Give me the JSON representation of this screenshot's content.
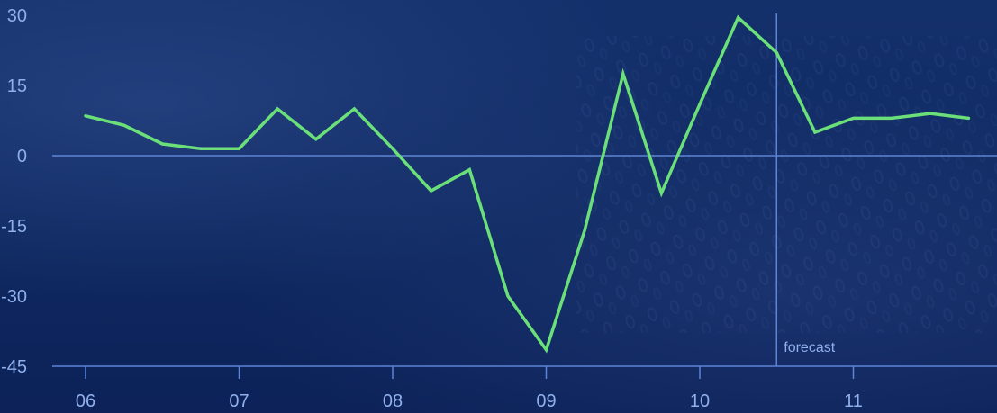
{
  "colors": {
    "line": "#6be079",
    "axis": "#5d84d6",
    "text": "#8fb0ec",
    "background": "#0f2a64"
  },
  "chart_data": {
    "type": "line",
    "title": "",
    "xlabel": "",
    "ylabel": "",
    "ylim": [
      -45,
      30
    ],
    "yticks": [
      30,
      15,
      0,
      -15,
      -30,
      -45
    ],
    "ytick_labels": [
      "30",
      "15",
      "0",
      "-15",
      "-30",
      "-45"
    ],
    "xlim": [
      2006,
      2011.88
    ],
    "xticks": [
      2006,
      2007,
      2008,
      2009,
      2010,
      2011
    ],
    "xtick_labels": [
      "06",
      "07",
      "08",
      "09",
      "10",
      "11"
    ],
    "grid": false,
    "legend": "none",
    "annotations": [
      {
        "text": "forecast",
        "x": 2010.5
      }
    ],
    "series": [
      {
        "x": [
          2006.0,
          2006.25,
          2006.5,
          2006.75,
          2007.0,
          2007.25,
          2007.5,
          2007.75,
          2008.0,
          2008.25,
          2008.5,
          2008.75,
          2009.0,
          2009.25,
          2009.5,
          2009.75,
          2010.0,
          2010.25,
          2010.5,
          2010.75,
          2011.0,
          2011.25,
          2011.5,
          2011.75
        ],
        "values": [
          8.5,
          6.5,
          2.5,
          1.5,
          1.5,
          10,
          3.5,
          10,
          1.5,
          -7.5,
          -3,
          -30,
          -41.5,
          -16,
          17.5,
          -8,
          11,
          29.5,
          22,
          5,
          8,
          8,
          9,
          8
        ]
      }
    ]
  }
}
